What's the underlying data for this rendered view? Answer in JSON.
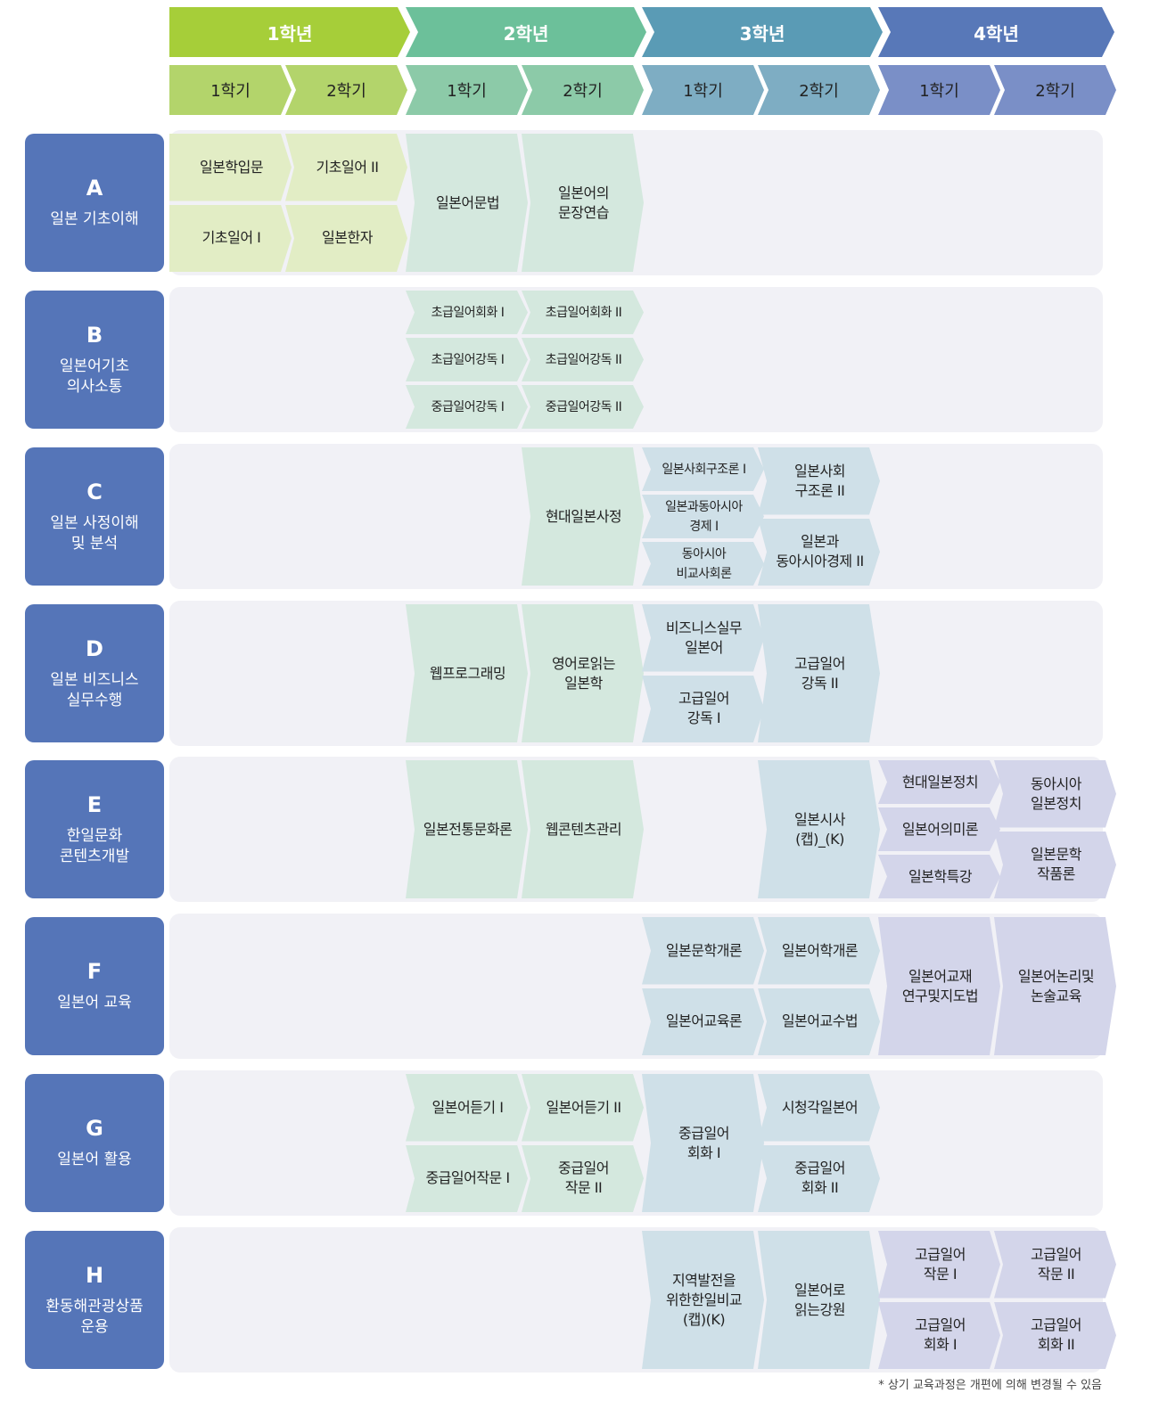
{
  "years": [
    {
      "label": "1학년",
      "color": "#a6ce39",
      "sem_color": "#b3d46b",
      "cell_color": "#e2edc5",
      "semesters": [
        "1학기",
        "2학기"
      ]
    },
    {
      "label": "2학년",
      "color": "#6cc09a",
      "sem_color": "#8ccaa8",
      "cell_color": "#d4e8de",
      "semesters": [
        "1학기",
        "2학기"
      ]
    },
    {
      "label": "3학년",
      "color": "#5a9bb5",
      "sem_color": "#7eadc3",
      "cell_color": "#cfe0e8",
      "semesters": [
        "1학기",
        "2학기"
      ]
    },
    {
      "label": "4학년",
      "color": "#5878b8",
      "sem_color": "#7a8fc7",
      "cell_color": "#d3d5ea",
      "semesters": [
        "1학기",
        "2학기"
      ]
    }
  ],
  "area_color": "#5575b8",
  "areas": [
    {
      "code": "A",
      "name": "일본 기초이해",
      "courses": [
        {
          "title": "일본학입문",
          "year": 1,
          "sem": 1
        },
        {
          "title": "기초일어 I",
          "year": 1,
          "sem": 1
        },
        {
          "title": "기초일어 II",
          "year": 1,
          "sem": 2
        },
        {
          "title": "일본한자",
          "year": 1,
          "sem": 2
        },
        {
          "title": "일본어문법",
          "year": 2,
          "sem": 1
        },
        {
          "title": "일본어의\n문장연습",
          "year": 2,
          "sem": 2
        }
      ]
    },
    {
      "code": "B",
      "name": "일본어기초\n의사소통",
      "courses": [
        {
          "title": "초급일어회화 I",
          "year": 2,
          "sem": 1
        },
        {
          "title": "초급일어강독 I",
          "year": 2,
          "sem": 1
        },
        {
          "title": "중급일어강독 I",
          "year": 2,
          "sem": 1
        },
        {
          "title": "초급일어회화 II",
          "year": 2,
          "sem": 2
        },
        {
          "title": "초급일어강독 II",
          "year": 2,
          "sem": 2
        },
        {
          "title": "중급일어강독 II",
          "year": 2,
          "sem": 2
        }
      ]
    },
    {
      "code": "C",
      "name": "일본 사정이해\n및 분석",
      "courses": [
        {
          "title": "현대일본사정",
          "year": 2,
          "sem": 2
        },
        {
          "title": "일본사회구조론 I",
          "year": 3,
          "sem": 1
        },
        {
          "title": "일본과동아시아\n경제 I",
          "year": 3,
          "sem": 1
        },
        {
          "title": "동아시아\n비교사회론",
          "year": 3,
          "sem": 1
        },
        {
          "title": "일본사회\n구조론 II",
          "year": 3,
          "sem": 2
        },
        {
          "title": "일본과\n동아시아경제 II",
          "year": 3,
          "sem": 2
        }
      ]
    },
    {
      "code": "D",
      "name": "일본 비즈니스\n실무수행",
      "courses": [
        {
          "title": "웹프로그래밍",
          "year": 2,
          "sem": 1
        },
        {
          "title": "영어로읽는\n일본학",
          "year": 2,
          "sem": 2
        },
        {
          "title": "비즈니스실무\n일본어",
          "year": 3,
          "sem": 1
        },
        {
          "title": "고급일어\n강독 I",
          "year": 3,
          "sem": 1
        },
        {
          "title": "고급일어\n강독 II",
          "year": 3,
          "sem": 2
        }
      ]
    },
    {
      "code": "E",
      "name": "한일문화\n콘텐츠개발",
      "courses": [
        {
          "title": "일본전통문화론",
          "year": 2,
          "sem": 1
        },
        {
          "title": "웹콘텐츠관리",
          "year": 2,
          "sem": 2
        },
        {
          "title": "일본시사\n(캡)_(K)",
          "year": 3,
          "sem": 2
        },
        {
          "title": "현대일본정치",
          "year": 4,
          "sem": 1
        },
        {
          "title": "일본어의미론",
          "year": 4,
          "sem": 1
        },
        {
          "title": "일본학특강",
          "year": 4,
          "sem": 1
        },
        {
          "title": "동아시아\n일본정치",
          "year": 4,
          "sem": 2
        },
        {
          "title": "일본문학\n작품론",
          "year": 4,
          "sem": 2
        }
      ]
    },
    {
      "code": "F",
      "name": "일본어 교육",
      "courses": [
        {
          "title": "일본문학개론",
          "year": 3,
          "sem": 1
        },
        {
          "title": "일본어교육론",
          "year": 3,
          "sem": 1
        },
        {
          "title": "일본어학개론",
          "year": 3,
          "sem": 2
        },
        {
          "title": "일본어교수법",
          "year": 3,
          "sem": 2
        },
        {
          "title": "일본어교재\n연구및지도법",
          "year": 4,
          "sem": 1
        },
        {
          "title": "일본어논리및\n논술교육",
          "year": 4,
          "sem": 2
        }
      ]
    },
    {
      "code": "G",
      "name": "일본어 활용",
      "courses": [
        {
          "title": "일본어듣기 I",
          "year": 2,
          "sem": 1
        },
        {
          "title": "중급일어작문 I",
          "year": 2,
          "sem": 1
        },
        {
          "title": "일본어듣기 II",
          "year": 2,
          "sem": 2
        },
        {
          "title": "중급일어\n작문 II",
          "year": 2,
          "sem": 2
        },
        {
          "title": "중급일어\n회화 I",
          "year": 3,
          "sem": 1
        },
        {
          "title": "시청각일본어",
          "year": 3,
          "sem": 2
        },
        {
          "title": "중급일어\n회화 II",
          "year": 3,
          "sem": 2
        }
      ]
    },
    {
      "code": "H",
      "name": "환동해관광상품\n운용",
      "courses": [
        {
          "title": "지역발전을\n위한한일비교\n(캡)(K)",
          "year": 3,
          "sem": 1
        },
        {
          "title": "일본어로\n읽는강원",
          "year": 3,
          "sem": 2
        },
        {
          "title": "고급일어\n작문 I",
          "year": 4,
          "sem": 1
        },
        {
          "title": "고급일어\n회화 I",
          "year": 4,
          "sem": 1
        },
        {
          "title": "고급일어\n작문 II",
          "year": 4,
          "sem": 2
        },
        {
          "title": "고급일어\n회화 II",
          "year": 4,
          "sem": 2
        }
      ]
    }
  ],
  "footnote": "* 상기 교육과정은 개편에 의해 변경될 수 있음"
}
